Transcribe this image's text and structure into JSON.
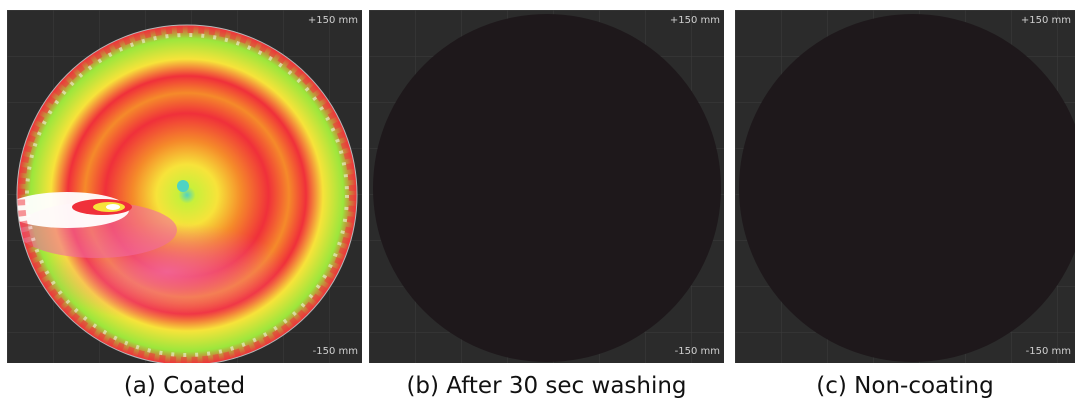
{
  "panels": [
    {
      "caption": "(a) Coated",
      "scale_top": "+150 mm",
      "scale_bottom": "-150 mm",
      "state": "colormap"
    },
    {
      "caption": "(b) After 30 sec washing",
      "scale_top": "+150 mm",
      "scale_bottom": "-150 mm",
      "state": "dark"
    },
    {
      "caption": "(c) Non-coating",
      "scale_top": "+150 mm",
      "scale_bottom": "-150 mm",
      "state": "dark"
    }
  ],
  "colors": {
    "background": "#2b2b2b",
    "grid": "#3c3c3c",
    "wafer_dark": "#1e181b",
    "colormap": [
      "#4fd3c4",
      "#c8f03a",
      "#f7e33a",
      "#f58a2a",
      "#f0303a",
      "#f26aa0",
      "#ffffff"
    ]
  }
}
